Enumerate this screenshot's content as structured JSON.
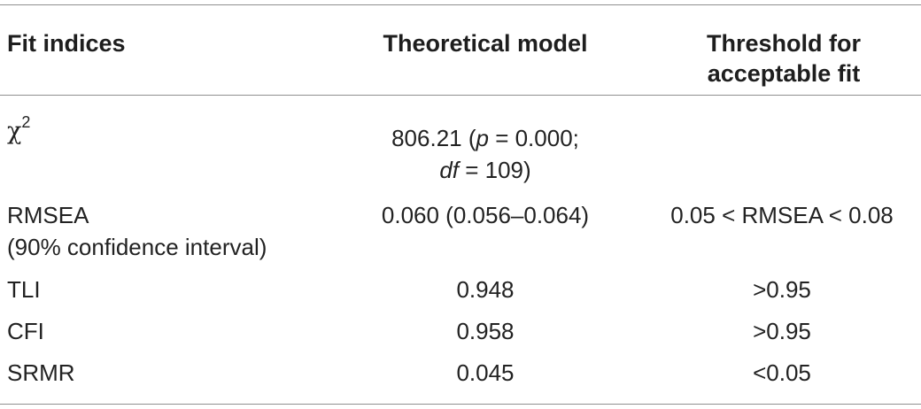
{
  "headers": {
    "col1": "Fit indices",
    "col2": "Theoretical model",
    "col3_line1": "Threshold for",
    "col3_line2": "acceptable fit"
  },
  "rows": [
    {
      "index_symbol": "χ",
      "index_sup": "2",
      "model_line1_a": "806.21 (",
      "model_line1_p": "p",
      "model_line1_b": " = 0.000;",
      "model_line2_df": "df",
      "model_line2_b": " = 109)",
      "threshold": ""
    },
    {
      "index_line1": "RMSEA",
      "index_line2": "(90% confidence interval)",
      "model": "0.060 (0.056–0.064)",
      "threshold": "0.05 < RMSEA < 0.08"
    },
    {
      "index": "TLI",
      "model": "0.948",
      "threshold": ">0.95"
    },
    {
      "index": "CFI",
      "model": "0.958",
      "threshold": ">0.95"
    },
    {
      "index": "SRMR",
      "model": "0.045",
      "threshold": "<0.05"
    }
  ]
}
